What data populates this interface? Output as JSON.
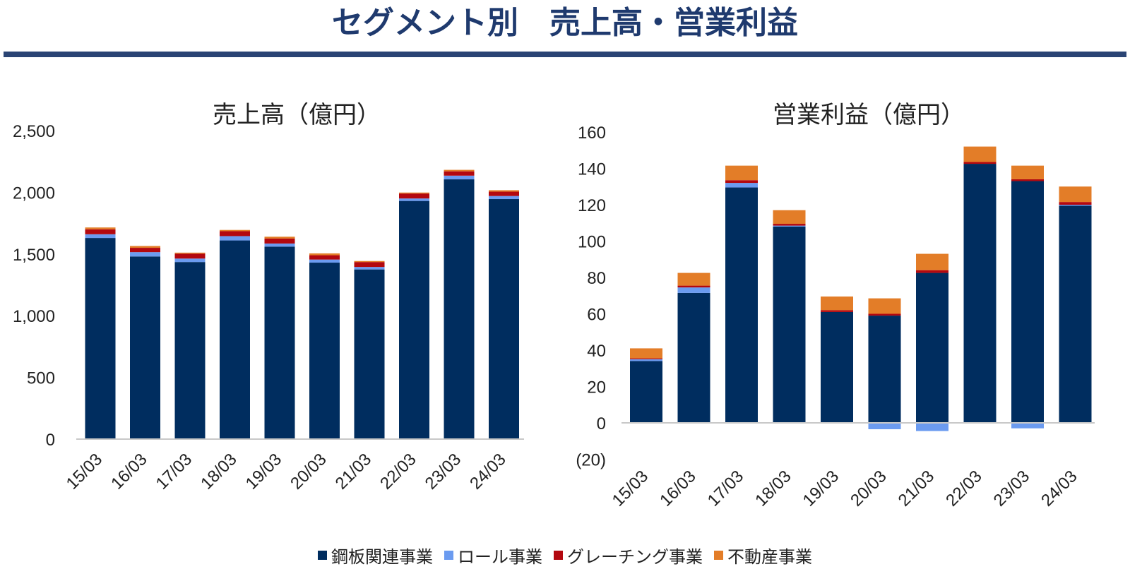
{
  "page": {
    "title": "セグメント別　売上高・営業利益"
  },
  "colors": {
    "steel": "#002d5f",
    "roll": "#6b9bf0",
    "grating": "#b3080f",
    "realestate": "#e37d28"
  },
  "legend": [
    {
      "name": "鋼板関連事業",
      "color": "#002d5f"
    },
    {
      "name": "ロール事業",
      "color": "#6b9bf0"
    },
    {
      "name": "グレーチング事業",
      "color": "#b3080f"
    },
    {
      "name": "不動産事業",
      "color": "#e37d28"
    }
  ],
  "chart_data": [
    {
      "type": "stacked-bar",
      "title": "売上高（億円）",
      "categories": [
        "15/03",
        "16/03",
        "17/03",
        "18/03",
        "19/03",
        "20/03",
        "21/03",
        "22/03",
        "23/03",
        "24/03"
      ],
      "ylim": [
        0,
        2500
      ],
      "yticks": [
        0,
        500,
        1000,
        1500,
        2000,
        2500
      ],
      "ytick_labels": [
        "0",
        "500",
        "1,000",
        "1,500",
        "2,000",
        "2,500"
      ],
      "series": [
        {
          "name": "鋼板関連事業",
          "values": [
            1630,
            1480,
            1435,
            1610,
            1560,
            1430,
            1375,
            1930,
            2105,
            1945
          ]
        },
        {
          "name": "ロール事業",
          "values": [
            30,
            35,
            28,
            35,
            25,
            25,
            20,
            20,
            30,
            25
          ]
        },
        {
          "name": "グレーチング事業",
          "values": [
            40,
            35,
            40,
            40,
            40,
            35,
            40,
            40,
            35,
            35
          ]
        },
        {
          "name": "不動産事業",
          "values": [
            15,
            15,
            8,
            10,
            15,
            15,
            8,
            8,
            12,
            12
          ]
        }
      ]
    },
    {
      "type": "stacked-bar",
      "title": "営業利益（億円）",
      "categories": [
        "15/03",
        "16/03",
        "17/03",
        "18/03",
        "19/03",
        "20/03",
        "21/03",
        "22/03",
        "23/03",
        "24/03"
      ],
      "ylim": [
        -20,
        160
      ],
      "yticks": [
        -20,
        0,
        20,
        40,
        60,
        80,
        100,
        120,
        140,
        160
      ],
      "ytick_labels": [
        "(20)",
        "0",
        "20",
        "40",
        "60",
        "80",
        "100",
        "120",
        "140",
        "160"
      ],
      "series": [
        {
          "name": "鋼板関連事業",
          "values": [
            34,
            71.5,
            129.5,
            108,
            61,
            59,
            82.5,
            142.5,
            133,
            119.5
          ]
        },
        {
          "name": "ロール事業",
          "values": [
            1,
            3,
            2.5,
            0.5,
            0,
            -3.5,
            -4.5,
            0,
            -3,
            0.5
          ]
        },
        {
          "name": "グレーチング事業",
          "values": [
            0.5,
            1,
            1.5,
            1,
            1,
            1,
            1.5,
            1,
            1,
            1.5
          ]
        },
        {
          "name": "不動産事業",
          "values": [
            5.5,
            7,
            8,
            7.5,
            7.5,
            8.5,
            9,
            8.5,
            7.5,
            8.5
          ]
        }
      ]
    }
  ]
}
